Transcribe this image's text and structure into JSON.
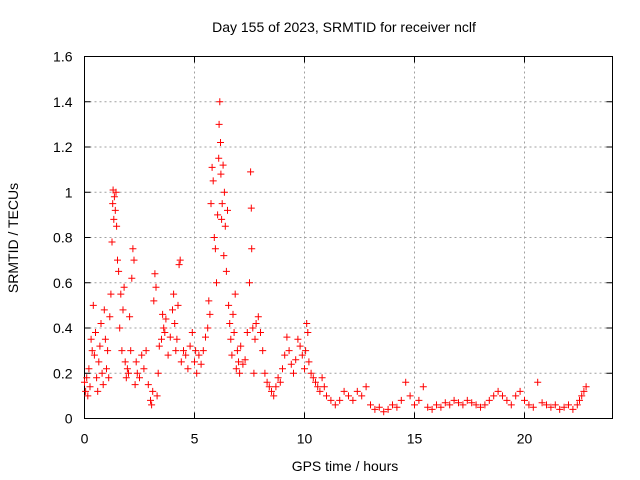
{
  "chart_data": {
    "type": "scatter",
    "title": "Day 155 of 2023, SRMTID for receiver nclf",
    "xlabel": "GPS time / hours",
    "ylabel": "SRMTID / TECUs",
    "xlim": [
      0,
      24
    ],
    "ylim": [
      0,
      1.6
    ],
    "x_ticks": [
      0,
      5,
      10,
      15,
      20
    ],
    "x_tick_labels": [
      "0",
      "5",
      "10",
      "15",
      "20"
    ],
    "y_ticks": [
      0,
      0.2,
      0.4,
      0.6,
      0.8,
      1,
      1.2,
      1.4,
      1.6
    ],
    "y_tick_labels": [
      "0",
      "0.2",
      "0.4",
      "0.6",
      "0.8",
      "1",
      "1.2",
      "1.4",
      "1.6"
    ],
    "grid": true,
    "marker": "+",
    "color": "#ff0000",
    "series": [
      {
        "name": "SRMTID",
        "points": [
          [
            0.0,
            0.16
          ],
          [
            0.05,
            0.12
          ],
          [
            0.1,
            0.18
          ],
          [
            0.15,
            0.1
          ],
          [
            0.2,
            0.22
          ],
          [
            0.25,
            0.14
          ],
          [
            0.3,
            0.35
          ],
          [
            0.35,
            0.3
          ],
          [
            0.4,
            0.5
          ],
          [
            0.45,
            0.28
          ],
          [
            0.5,
            0.38
          ],
          [
            0.55,
            0.18
          ],
          [
            0.6,
            0.12
          ],
          [
            0.65,
            0.25
          ],
          [
            0.7,
            0.32
          ],
          [
            0.75,
            0.42
          ],
          [
            0.8,
            0.2
          ],
          [
            0.85,
            0.15
          ],
          [
            0.9,
            0.48
          ],
          [
            0.95,
            0.35
          ],
          [
            1.0,
            0.22
          ],
          [
            1.05,
            0.3
          ],
          [
            1.1,
            0.18
          ],
          [
            1.15,
            0.45
          ],
          [
            1.2,
            0.55
          ],
          [
            1.25,
            0.78
          ],
          [
            1.28,
            0.95
          ],
          [
            1.3,
            1.01
          ],
          [
            1.33,
            0.88
          ],
          [
            1.36,
            0.98
          ],
          [
            1.4,
            0.92
          ],
          [
            1.43,
            1.0
          ],
          [
            1.46,
            0.85
          ],
          [
            1.5,
            0.7
          ],
          [
            1.55,
            0.65
          ],
          [
            1.6,
            0.4
          ],
          [
            1.65,
            0.55
          ],
          [
            1.7,
            0.3
          ],
          [
            1.75,
            0.48
          ],
          [
            1.8,
            0.58
          ],
          [
            1.85,
            0.25
          ],
          [
            1.9,
            0.18
          ],
          [
            1.95,
            0.22
          ],
          [
            2.0,
            0.2
          ],
          [
            2.05,
            0.45
          ],
          [
            2.1,
            0.3
          ],
          [
            2.15,
            0.62
          ],
          [
            2.2,
            0.75
          ],
          [
            2.25,
            0.7
          ],
          [
            2.3,
            0.15
          ],
          [
            2.35,
            0.25
          ],
          [
            2.4,
            0.2
          ],
          [
            2.5,
            0.18
          ],
          [
            2.6,
            0.28
          ],
          [
            2.7,
            0.22
          ],
          [
            2.8,
            0.3
          ],
          [
            2.9,
            0.15
          ],
          [
            3.0,
            0.08
          ],
          [
            3.05,
            0.06
          ],
          [
            3.1,
            0.12
          ],
          [
            3.15,
            0.52
          ],
          [
            3.2,
            0.64
          ],
          [
            3.25,
            0.58
          ],
          [
            3.3,
            0.1
          ],
          [
            3.35,
            0.2
          ],
          [
            3.4,
            0.32
          ],
          [
            3.5,
            0.35
          ],
          [
            3.55,
            0.46
          ],
          [
            3.6,
            0.4
          ],
          [
            3.65,
            0.38
          ],
          [
            3.7,
            0.44
          ],
          [
            3.8,
            0.28
          ],
          [
            3.9,
            0.36
          ],
          [
            4.0,
            0.48
          ],
          [
            4.05,
            0.55
          ],
          [
            4.1,
            0.42
          ],
          [
            4.15,
            0.3
          ],
          [
            4.2,
            0.35
          ],
          [
            4.25,
            0.5
          ],
          [
            4.3,
            0.68
          ],
          [
            4.35,
            0.7
          ],
          [
            4.4,
            0.25
          ],
          [
            4.5,
            0.3
          ],
          [
            4.6,
            0.28
          ],
          [
            4.7,
            0.22
          ],
          [
            4.8,
            0.32
          ],
          [
            4.9,
            0.38
          ],
          [
            5.0,
            0.25
          ],
          [
            5.05,
            0.3
          ],
          [
            5.1,
            0.2
          ],
          [
            5.2,
            0.28
          ],
          [
            5.3,
            0.24
          ],
          [
            5.4,
            0.3
          ],
          [
            5.5,
            0.36
          ],
          [
            5.6,
            0.4
          ],
          [
            5.65,
            0.52
          ],
          [
            5.7,
            0.46
          ],
          [
            5.75,
            0.95
          ],
          [
            5.8,
            1.11
          ],
          [
            5.85,
            1.05
          ],
          [
            5.9,
            0.8
          ],
          [
            5.95,
            0.75
          ],
          [
            6.0,
            0.6
          ],
          [
            6.05,
            0.9
          ],
          [
            6.1,
            1.15
          ],
          [
            6.12,
            1.3
          ],
          [
            6.15,
            1.4
          ],
          [
            6.18,
            1.22
          ],
          [
            6.2,
            1.08
          ],
          [
            6.23,
            0.88
          ],
          [
            6.26,
            0.95
          ],
          [
            6.3,
            1.12
          ],
          [
            6.33,
            0.72
          ],
          [
            6.36,
            1.0
          ],
          [
            6.4,
            0.85
          ],
          [
            6.45,
            0.65
          ],
          [
            6.5,
            0.92
          ],
          [
            6.55,
            0.5
          ],
          [
            6.6,
            0.42
          ],
          [
            6.65,
            0.35
          ],
          [
            6.7,
            0.28
          ],
          [
            6.75,
            0.46
          ],
          [
            6.8,
            0.38
          ],
          [
            6.85,
            0.55
          ],
          [
            6.9,
            0.22
          ],
          [
            6.95,
            0.3
          ],
          [
            7.0,
            0.25
          ],
          [
            7.05,
            0.2
          ],
          [
            7.1,
            0.32
          ],
          [
            7.2,
            0.24
          ],
          [
            7.3,
            0.26
          ],
          [
            7.4,
            0.38
          ],
          [
            7.5,
            0.6
          ],
          [
            7.55,
            1.09
          ],
          [
            7.58,
            0.93
          ],
          [
            7.6,
            0.75
          ],
          [
            7.65,
            0.4
          ],
          [
            7.7,
            0.2
          ],
          [
            7.75,
            0.35
          ],
          [
            7.8,
            0.42
          ],
          [
            7.9,
            0.45
          ],
          [
            8.0,
            0.38
          ],
          [
            8.1,
            0.3
          ],
          [
            8.2,
            0.2
          ],
          [
            8.3,
            0.16
          ],
          [
            8.4,
            0.14
          ],
          [
            8.5,
            0.12
          ],
          [
            8.6,
            0.1
          ],
          [
            8.7,
            0.14
          ],
          [
            8.8,
            0.18
          ],
          [
            8.9,
            0.16
          ],
          [
            9.0,
            0.22
          ],
          [
            9.1,
            0.28
          ],
          [
            9.2,
            0.36
          ],
          [
            9.3,
            0.3
          ],
          [
            9.4,
            0.24
          ],
          [
            9.5,
            0.2
          ],
          [
            9.6,
            0.26
          ],
          [
            9.7,
            0.35
          ],
          [
            9.8,
            0.32
          ],
          [
            9.9,
            0.28
          ],
          [
            10.0,
            0.22
          ],
          [
            10.05,
            0.3
          ],
          [
            10.1,
            0.42
          ],
          [
            10.15,
            0.38
          ],
          [
            10.2,
            0.25
          ],
          [
            10.3,
            0.2
          ],
          [
            10.4,
            0.18
          ],
          [
            10.5,
            0.16
          ],
          [
            10.6,
            0.14
          ],
          [
            10.7,
            0.12
          ],
          [
            10.8,
            0.18
          ],
          [
            10.9,
            0.14
          ],
          [
            11.0,
            0.1
          ],
          [
            11.2,
            0.08
          ],
          [
            11.4,
            0.06
          ],
          [
            11.6,
            0.08
          ],
          [
            11.8,
            0.12
          ],
          [
            12.0,
            0.1
          ],
          [
            12.2,
            0.08
          ],
          [
            12.4,
            0.12
          ],
          [
            12.6,
            0.1
          ],
          [
            12.8,
            0.14
          ],
          [
            13.0,
            0.06
          ],
          [
            13.2,
            0.04
          ],
          [
            13.4,
            0.05
          ],
          [
            13.6,
            0.03
          ],
          [
            13.8,
            0.04
          ],
          [
            14.0,
            0.06
          ],
          [
            14.2,
            0.05
          ],
          [
            14.4,
            0.08
          ],
          [
            14.6,
            0.16
          ],
          [
            14.8,
            0.1
          ],
          [
            15.0,
            0.06
          ],
          [
            15.2,
            0.08
          ],
          [
            15.4,
            0.14
          ],
          [
            15.6,
            0.05
          ],
          [
            15.8,
            0.04
          ],
          [
            16.0,
            0.06
          ],
          [
            16.2,
            0.05
          ],
          [
            16.4,
            0.07
          ],
          [
            16.6,
            0.06
          ],
          [
            16.8,
            0.08
          ],
          [
            17.0,
            0.07
          ],
          [
            17.2,
            0.06
          ],
          [
            17.4,
            0.08
          ],
          [
            17.6,
            0.07
          ],
          [
            17.8,
            0.06
          ],
          [
            18.0,
            0.05
          ],
          [
            18.2,
            0.06
          ],
          [
            18.4,
            0.08
          ],
          [
            18.6,
            0.1
          ],
          [
            18.8,
            0.12
          ],
          [
            19.0,
            0.1
          ],
          [
            19.2,
            0.08
          ],
          [
            19.4,
            0.06
          ],
          [
            19.6,
            0.1
          ],
          [
            19.8,
            0.12
          ],
          [
            20.0,
            0.08
          ],
          [
            20.2,
            0.06
          ],
          [
            20.4,
            0.05
          ],
          [
            20.6,
            0.16
          ],
          [
            20.8,
            0.07
          ],
          [
            21.0,
            0.06
          ],
          [
            21.2,
            0.05
          ],
          [
            21.4,
            0.06
          ],
          [
            21.6,
            0.04
          ],
          [
            21.8,
            0.05
          ],
          [
            22.0,
            0.06
          ],
          [
            22.2,
            0.04
          ],
          [
            22.4,
            0.06
          ],
          [
            22.5,
            0.08
          ],
          [
            22.6,
            0.1
          ],
          [
            22.7,
            0.12
          ],
          [
            22.8,
            0.14
          ]
        ]
      }
    ]
  }
}
